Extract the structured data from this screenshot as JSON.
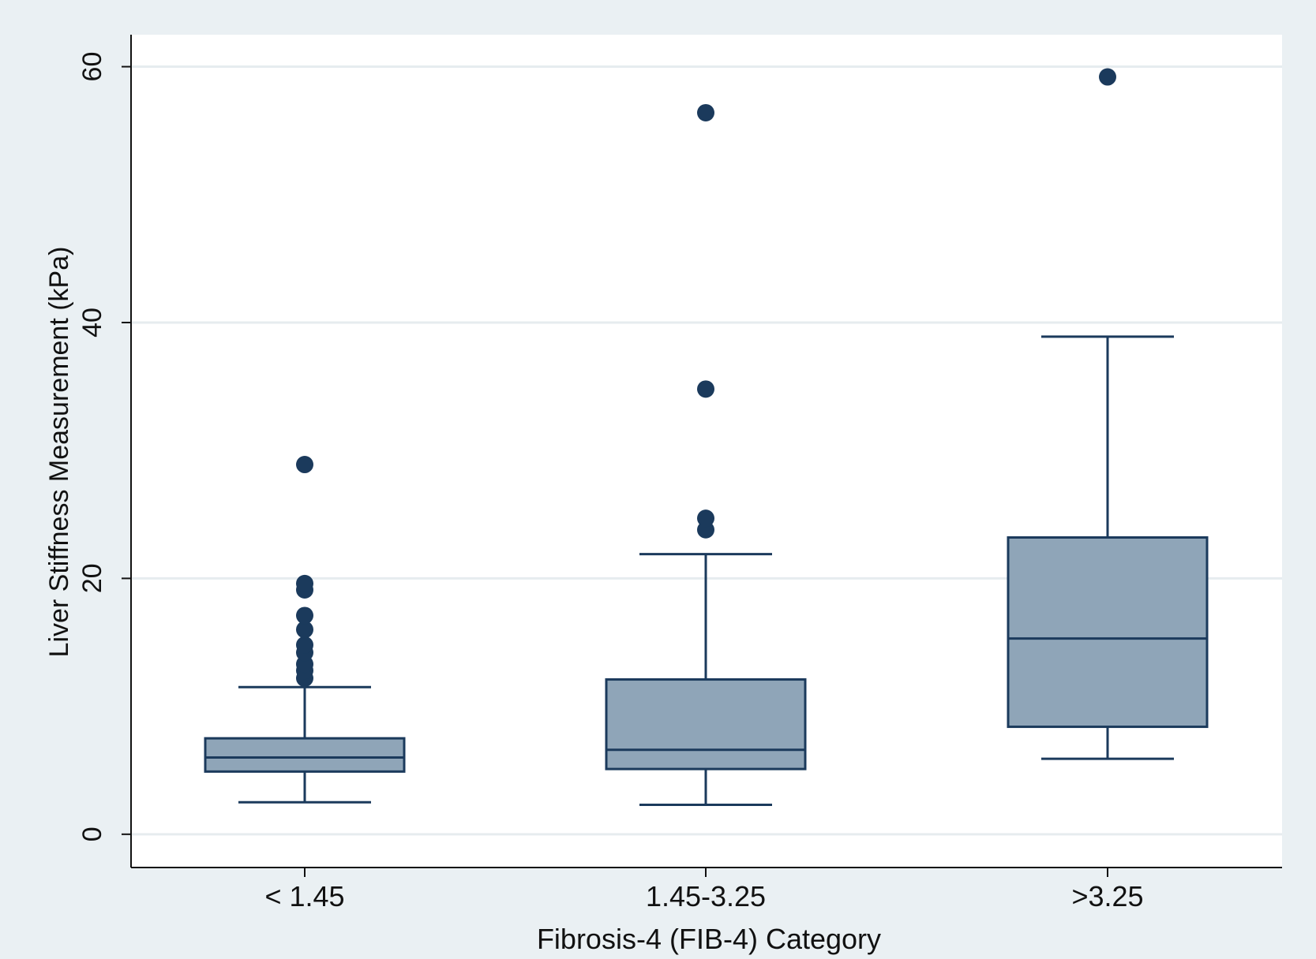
{
  "chart_data": {
    "type": "box",
    "title": "",
    "xlabel": "Fibrosis-4 (FIB-4) Category",
    "ylabel": "Liver Stiffness Measurement (kPa)",
    "ylim": [
      -2.6,
      62.5
    ],
    "yticks": [
      0,
      20,
      40,
      60
    ],
    "grid": true,
    "categories": [
      "< 1.45",
      "1.45-3.25",
      ">3.25"
    ],
    "boxes": [
      {
        "category": "< 1.45",
        "whisker_low": 2.5,
        "q1": 4.9,
        "median": 6.0,
        "q3": 7.5,
        "whisker_high": 11.5,
        "outliers": [
          12.2,
          12.8,
          13.3,
          14.2,
          14.8,
          16.0,
          17.1,
          19.1,
          19.6,
          28.9
        ]
      },
      {
        "category": "1.45-3.25",
        "whisker_low": 2.3,
        "q1": 5.1,
        "median": 6.6,
        "q3": 12.1,
        "whisker_high": 21.9,
        "outliers": [
          23.8,
          24.7,
          34.8,
          56.4
        ]
      },
      {
        "category": ">3.25",
        "whisker_low": 5.9,
        "q1": 8.4,
        "median": 15.3,
        "q3": 23.2,
        "whisker_high": 38.9,
        "outliers": [
          59.2
        ]
      }
    ],
    "colors": {
      "box_fill": "#8fa5b8",
      "stroke": "#1b3a5c",
      "point": "#1b3a5c",
      "grid": "#e6ecef",
      "plot_bg": "#ffffff",
      "page_bg": "#eaf0f3"
    }
  }
}
